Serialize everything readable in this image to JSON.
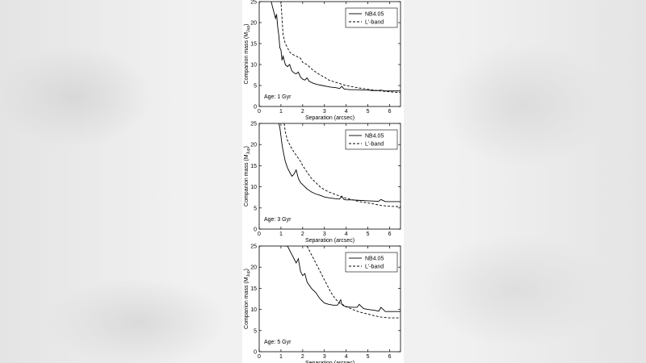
{
  "chart_data": [
    {
      "type": "line",
      "xlabel": "Separation (arcsec)",
      "ylabel": "Companion mass (M",
      "ylabel_sub": "Jup",
      "ylabel_close": ")",
      "xlim": [
        0,
        6.5
      ],
      "ylim": [
        0,
        25
      ],
      "xticks": [
        "0",
        "1",
        "2",
        "3",
        "4",
        "5",
        "6"
      ],
      "yticks": [
        "0",
        "5",
        "10",
        "15",
        "20",
        "25"
      ],
      "annotation": "Age: 1 Gyr",
      "legend_position": "top-right",
      "series": [
        {
          "name": "NB4.05",
          "style": "solid",
          "x": [
            0.55,
            0.65,
            0.75,
            0.8,
            0.85,
            0.9,
            0.95,
            1.0,
            1.05,
            1.1,
            1.2,
            1.3,
            1.4,
            1.5,
            1.6,
            1.7,
            1.8,
            1.9,
            2.0,
            2.1,
            2.2,
            2.3,
            2.5,
            2.7,
            2.9,
            3.1,
            3.3,
            3.5,
            3.7,
            3.8,
            3.9,
            4.0,
            4.2,
            4.5,
            4.8,
            5.0,
            5.2,
            5.5,
            5.6,
            5.8,
            6.0,
            6.5
          ],
          "y": [
            25,
            23,
            21,
            22,
            19,
            17,
            14,
            13.5,
            11,
            12,
            10,
            9.5,
            10,
            8.5,
            8,
            7.8,
            8.2,
            7,
            6.5,
            6.3,
            6.8,
            6,
            5.5,
            5.2,
            5,
            4.8,
            4.6,
            4.5,
            4.3,
            4.8,
            4.2,
            4.1,
            4.0,
            4.0,
            3.9,
            3.9,
            3.8,
            3.8,
            3.9,
            3.7,
            3.7,
            3.7
          ]
        },
        {
          "name": "L'-band",
          "style": "dashed",
          "x": [
            0.95,
            1.0,
            1.05,
            1.1,
            1.2,
            1.3,
            1.4,
            1.5,
            1.7,
            1.9,
            2.0,
            2.2,
            2.4,
            2.6,
            2.8,
            3.0,
            3.2,
            3.5,
            3.8,
            4.0,
            4.3,
            4.6,
            5.0,
            5.3,
            5.6,
            6.0,
            6.5
          ],
          "y": [
            25,
            25,
            21,
            17,
            15,
            14,
            13,
            12.5,
            12,
            11.5,
            10.5,
            10,
            9,
            8.2,
            7.5,
            7,
            6.3,
            5.8,
            5.3,
            5,
            4.7,
            4.4,
            4.1,
            3.9,
            3.7,
            3.5,
            3.3
          ]
        }
      ]
    },
    {
      "type": "line",
      "xlabel": "Separation (arcsec)",
      "ylabel": "Companion mass (M",
      "ylabel_sub": "Jup",
      "ylabel_close": ")",
      "xlim": [
        0,
        6.5
      ],
      "ylim": [
        0,
        25
      ],
      "xticks": [
        "0",
        "1",
        "2",
        "3",
        "4",
        "5",
        "6"
      ],
      "yticks": [
        "0",
        "5",
        "10",
        "15",
        "20",
        "25"
      ],
      "annotation": "Age: 3 Gyr",
      "legend_position": "top-right",
      "series": [
        {
          "name": "NB4.05",
          "style": "solid",
          "x": [
            0.9,
            0.95,
            1.0,
            1.05,
            1.1,
            1.2,
            1.3,
            1.4,
            1.5,
            1.6,
            1.7,
            1.8,
            1.9,
            2.0,
            2.2,
            2.4,
            2.6,
            2.8,
            3.0,
            3.2,
            3.5,
            3.7,
            3.8,
            3.9,
            4.0,
            4.3,
            4.6,
            5.0,
            5.4,
            5.5,
            5.6,
            5.8,
            6.0,
            6.5
          ],
          "y": [
            25,
            24,
            22,
            20,
            18.5,
            16,
            14.5,
            13.5,
            12.5,
            13,
            14,
            12,
            11,
            10.5,
            9.5,
            8.8,
            8.3,
            8.0,
            7.6,
            7.4,
            7.2,
            7.1,
            7.8,
            7.0,
            6.9,
            6.9,
            6.8,
            6.7,
            6.6,
            6.6,
            7.0,
            6.5,
            6.5,
            6.5
          ]
        },
        {
          "name": "L'-band",
          "style": "dashed",
          "x": [
            1.15,
            1.2,
            1.3,
            1.4,
            1.5,
            1.7,
            1.9,
            2.0,
            2.2,
            2.4,
            2.6,
            2.8,
            3.0,
            3.2,
            3.5,
            3.8,
            4.0,
            4.3,
            4.6,
            5.0,
            5.3,
            5.6,
            6.0,
            6.5
          ],
          "y": [
            25,
            23,
            21,
            20,
            19,
            17.5,
            16,
            15,
            13.5,
            12,
            11,
            10,
            9.3,
            8.8,
            8.2,
            7.6,
            7.3,
            6.9,
            6.5,
            6.2,
            5.9,
            5.6,
            5.4,
            5.3
          ]
        }
      ]
    },
    {
      "type": "line",
      "xlabel": "Separation (arcsec)",
      "ylabel": "Companion mass (M",
      "ylabel_sub": "Jup",
      "ylabel_close": ")",
      "xlim": [
        0,
        6.5
      ],
      "ylim": [
        0,
        25
      ],
      "xticks": [
        "0",
        "1",
        "2",
        "3",
        "4",
        "5",
        "6"
      ],
      "yticks": [
        "0",
        "5",
        "10",
        "15",
        "20",
        "25"
      ],
      "annotation": "Age: 5 Gyr",
      "legend_position": "top-right",
      "series": [
        {
          "name": "NB4.05",
          "style": "solid",
          "x": [
            1.15,
            1.3,
            1.5,
            1.7,
            1.8,
            1.9,
            2.0,
            2.1,
            2.2,
            2.4,
            2.6,
            2.8,
            3.0,
            3.2,
            3.4,
            3.6,
            3.75,
            3.8,
            3.9,
            4.0,
            4.3,
            4.5,
            4.6,
            4.8,
            5.0,
            5.3,
            5.5,
            5.6,
            5.8,
            6.0,
            6.5
          ],
          "y": [
            25,
            25,
            23,
            21,
            22,
            19,
            18,
            18.5,
            16.5,
            15,
            14,
            12.5,
            11.5,
            11.2,
            11.0,
            11.0,
            12.3,
            11.2,
            10.8,
            10.6,
            10.5,
            10.5,
            11.2,
            10.2,
            10.0,
            9.8,
            9.6,
            10.5,
            9.5,
            9.5,
            9.5
          ]
        },
        {
          "name": "L'-band",
          "style": "dashed",
          "x": [
            2.2,
            2.3,
            2.5,
            2.7,
            2.9,
            3.1,
            3.3,
            3.5,
            3.7,
            4.0,
            4.3,
            4.6,
            5.0,
            5.3,
            5.6,
            6.0,
            6.5
          ],
          "y": [
            25,
            24,
            22,
            20,
            18,
            16,
            14,
            12.5,
            11.5,
            10.7,
            10.0,
            9.4,
            8.9,
            8.5,
            8.2,
            8.0,
            8.0
          ]
        }
      ]
    }
  ]
}
